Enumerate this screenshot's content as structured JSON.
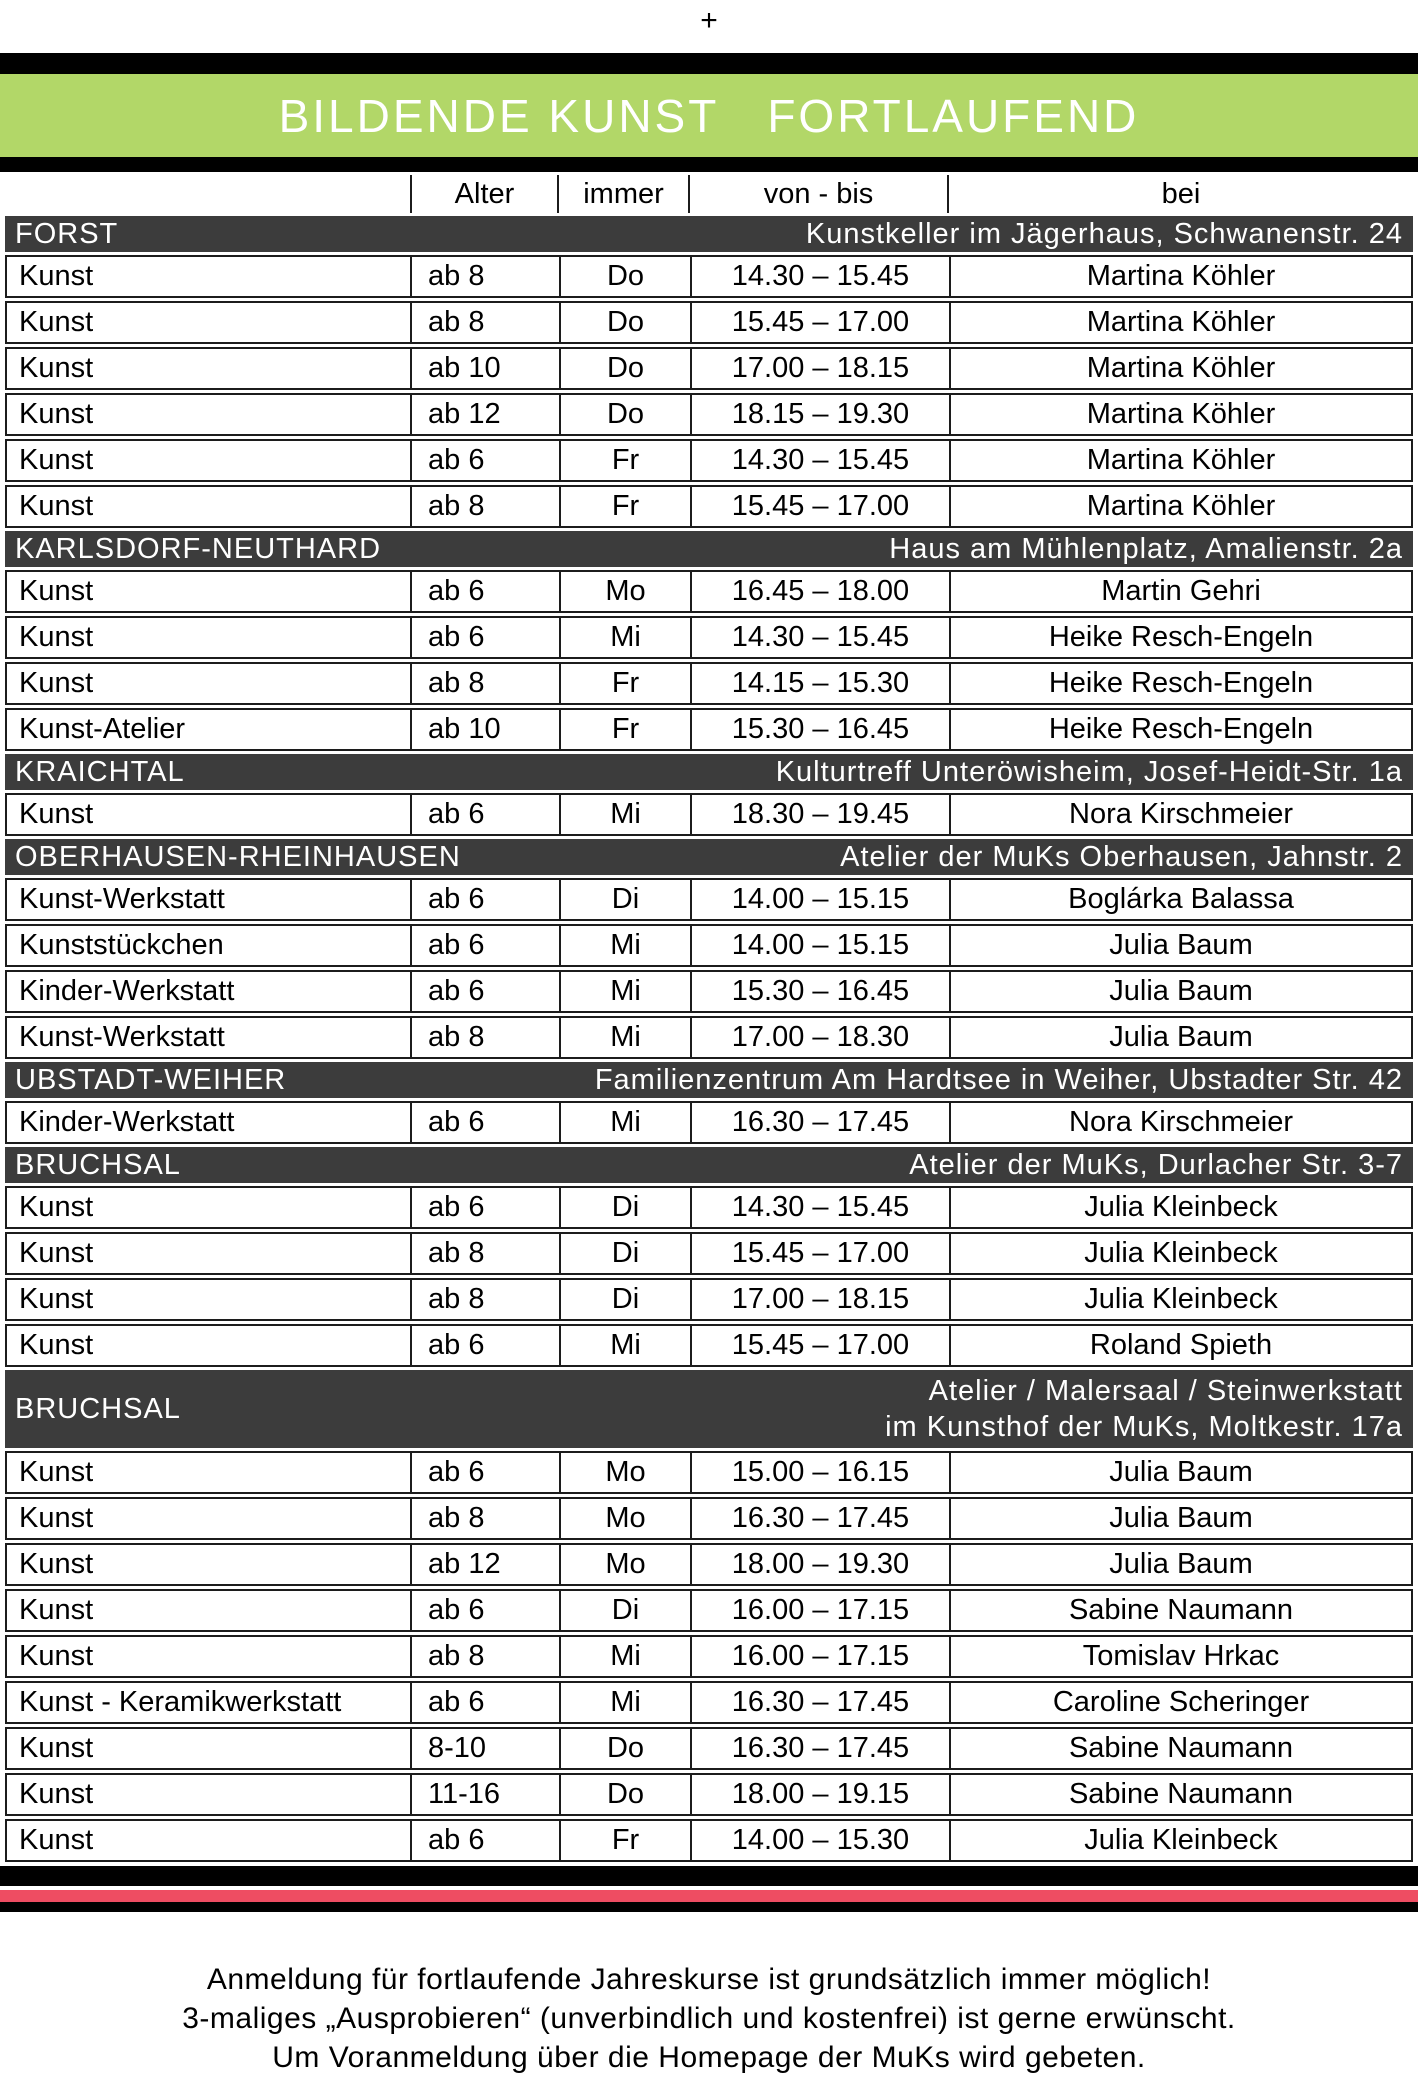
{
  "page": {
    "crop_mark": "+",
    "banner": {
      "title_left": "BILDENDE KUNST",
      "title_right": "FORTLAUFEND"
    },
    "colors": {
      "banner_green": "#b2d768",
      "section_bar_gray": "#3c3c3c",
      "stripe_pink": "#ee4d62",
      "stripe_black": "#000000"
    }
  },
  "table": {
    "header": {
      "course": "",
      "age": "Alter",
      "day": "immer",
      "time": "von - bis",
      "with": "bei"
    },
    "sections": [
      {
        "name": "FORST",
        "location_lines": [
          "Kunstkeller im Jägerhaus, Schwanenstr. 24"
        ],
        "rows": [
          [
            "Kunst",
            "ab 8",
            "Do",
            "14.30 – 15.45",
            "Martina Köhler"
          ],
          [
            "Kunst",
            "ab 8",
            "Do",
            "15.45 – 17.00",
            "Martina Köhler"
          ],
          [
            "Kunst",
            "ab 10",
            "Do",
            "17.00 – 18.15",
            "Martina Köhler"
          ],
          [
            "Kunst",
            "ab 12",
            "Do",
            "18.15 – 19.30",
            "Martina Köhler"
          ],
          [
            "Kunst",
            "ab 6",
            "Fr",
            "14.30 – 15.45",
            "Martina Köhler"
          ],
          [
            "Kunst",
            "ab 8",
            "Fr",
            "15.45 – 17.00",
            "Martina Köhler"
          ]
        ]
      },
      {
        "name": "KARLSDORF-NEUTHARD",
        "location_lines": [
          "Haus am Mühlenplatz, Amalienstr. 2a"
        ],
        "rows": [
          [
            "Kunst",
            "ab 6",
            "Mo",
            "16.45 – 18.00",
            "Martin Gehri"
          ],
          [
            "Kunst",
            "ab 6",
            "Mi",
            "14.30 – 15.45",
            "Heike Resch-Engeln"
          ],
          [
            "Kunst",
            "ab 8",
            "Fr",
            "14.15 – 15.30",
            "Heike Resch-Engeln"
          ],
          [
            "Kunst-Atelier",
            "ab 10",
            "Fr",
            "15.30 – 16.45",
            "Heike Resch-Engeln"
          ]
        ]
      },
      {
        "name": "KRAICHTAL",
        "location_lines": [
          "Kulturtreff Unteröwisheim, Josef-Heidt-Str. 1a"
        ],
        "rows": [
          [
            "Kunst",
            "ab 6",
            "Mi",
            "18.30 – 19.45",
            "Nora Kirschmeier"
          ]
        ]
      },
      {
        "name": "OBERHAUSEN-RHEINHAUSEN",
        "location_lines": [
          "Atelier der MuKs Oberhausen, Jahnstr. 2"
        ],
        "rows": [
          [
            "Kunst-Werkstatt",
            "ab 6",
            "Di",
            "14.00 – 15.15",
            "Boglárka Balassa"
          ],
          [
            "Kunststückchen",
            "ab 6",
            "Mi",
            "14.00 – 15.15",
            "Julia Baum"
          ],
          [
            "Kinder-Werkstatt",
            "ab 6",
            "Mi",
            "15.30 – 16.45",
            "Julia Baum"
          ],
          [
            "Kunst-Werkstatt",
            "ab 8",
            "Mi",
            "17.00 – 18.30",
            "Julia Baum"
          ]
        ]
      },
      {
        "name": "UBSTADT-WEIHER",
        "location_lines": [
          "Familienzentrum Am Hardtsee in Weiher, Ubstadter Str. 42"
        ],
        "rows": [
          [
            "Kinder-Werkstatt",
            "ab 6",
            "Mi",
            "16.30 – 17.45",
            "Nora Kirschmeier"
          ]
        ]
      },
      {
        "name": "BRUCHSAL",
        "location_lines": [
          "Atelier der MuKs, Durlacher Str. 3-7"
        ],
        "rows": [
          [
            "Kunst",
            "ab 6",
            "Di",
            "14.30 – 15.45",
            "Julia Kleinbeck"
          ],
          [
            "Kunst",
            "ab 8",
            "Di",
            "15.45 – 17.00",
            "Julia Kleinbeck"
          ],
          [
            "Kunst",
            "ab 8",
            "Di",
            "17.00 – 18.15",
            "Julia Kleinbeck"
          ],
          [
            "Kunst",
            "ab 6",
            "Mi",
            "15.45 – 17.00",
            "Roland Spieth"
          ]
        ]
      },
      {
        "name": "BRUCHSAL",
        "location_lines": [
          "Atelier / Malersaal / Steinwerkstatt",
          "im Kunsthof der MuKs, Moltkestr. 17a"
        ],
        "rows": [
          [
            "Kunst",
            "ab 6",
            "Mo",
            "15.00 – 16.15",
            "Julia Baum"
          ],
          [
            "Kunst",
            "ab 8",
            "Mo",
            "16.30 – 17.45",
            "Julia Baum"
          ],
          [
            "Kunst",
            "ab 12",
            "Mo",
            "18.00 – 19.30",
            "Julia Baum"
          ],
          [
            "Kunst",
            "ab 6",
            "Di",
            "16.00 – 17.15",
            "Sabine Naumann"
          ],
          [
            "Kunst",
            "ab 8",
            "Mi",
            "16.00 – 17.15",
            "Tomislav Hrkac"
          ],
          [
            "Kunst - Keramikwerkstatt",
            "ab 6",
            "Mi",
            "16.30 – 17.45",
            "Caroline Scheringer"
          ],
          [
            "Kunst",
            "8-10",
            "Do",
            "16.30 – 17.45",
            "Sabine Naumann"
          ],
          [
            "Kunst",
            "11-16",
            "Do",
            "18.00 – 19.15",
            "Sabine Naumann"
          ],
          [
            "Kunst",
            "ab 6",
            "Fr",
            "14.00 – 15.30",
            "Julia Kleinbeck"
          ]
        ]
      }
    ]
  },
  "footer": {
    "lines": [
      "Anmeldung für fortlaufende Jahreskurse ist grundsätzlich immer möglich!",
      "3-maliges „Ausprobieren“ (unverbindlich und kostenfrei) ist gerne erwünscht.",
      "Um Voranmeldung über die Homepage der MuKs wird gebeten."
    ]
  }
}
